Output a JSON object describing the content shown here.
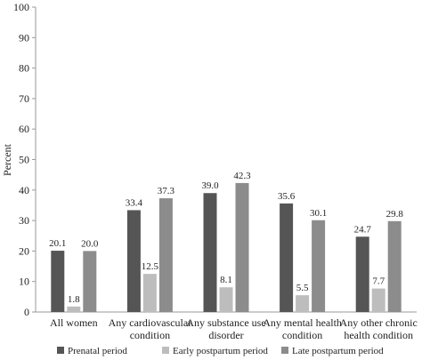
{
  "chart_data": {
    "type": "bar",
    "title": "",
    "xlabel": "",
    "ylabel": "Percent",
    "ylim": [
      0,
      100
    ],
    "yticks": [
      0,
      10,
      20,
      30,
      40,
      50,
      60,
      70,
      80,
      90,
      100
    ],
    "grid": false,
    "legend_position": "bottom",
    "categories": [
      [
        "All women"
      ],
      [
        "Any cardiovascular",
        "condition"
      ],
      [
        "Any substance use",
        "disorder"
      ],
      [
        "Any mental health",
        "condition"
      ],
      [
        "Any other chronic",
        "health condition"
      ]
    ],
    "series": [
      {
        "name": "Prenatal period",
        "color": "#555555",
        "values": [
          20.1,
          33.4,
          39.0,
          35.6,
          24.7
        ],
        "labels": [
          "20.1",
          "33.4",
          "39.0",
          "35.6",
          "24.7"
        ]
      },
      {
        "name": "Early postpartum period",
        "color": "#bdbdbd",
        "values": [
          1.8,
          12.5,
          8.1,
          5.5,
          7.7
        ],
        "labels": [
          "1.8",
          "12.5",
          "8.1",
          "5.5",
          "7.7"
        ]
      },
      {
        "name": "Late postpartum period",
        "color": "#8c8c8c",
        "values": [
          20.0,
          37.3,
          42.3,
          30.1,
          29.8
        ],
        "labels": [
          "20.0",
          "37.3",
          "42.3",
          "30.1",
          "29.8"
        ]
      }
    ]
  }
}
